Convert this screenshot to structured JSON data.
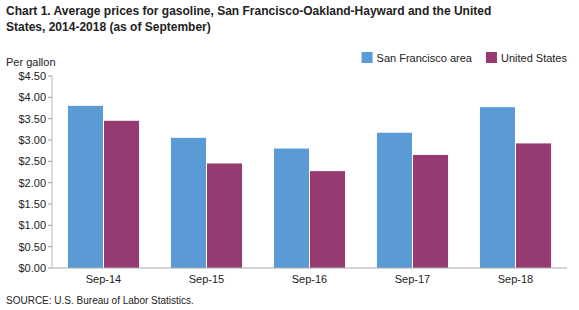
{
  "chart_data": {
    "type": "bar",
    "title": "Chart 1. Average prices for gasoline, San Francisco-Oakland-Hayward and the United",
    "subtitle": "States, 2014-2018  (as of September)",
    "y_label": "Per gallon",
    "annotations": [
      "SOURCE: U.S. Bureau of Labor Statistics."
    ],
    "categories": [
      "Sep-14",
      "Sep-15",
      "Sep-16",
      "Sep-17",
      "Sep-18"
    ],
    "series": [
      {
        "name": "San Francisco area",
        "color": "#5B9BD5",
        "values": [
          3.8,
          3.05,
          2.8,
          3.17,
          3.77
        ]
      },
      {
        "name": "United States",
        "color": "#963A72",
        "values": [
          3.45,
          2.45,
          2.27,
          2.65,
          2.92
        ]
      }
    ],
    "ylim": [
      0,
      4.5
    ],
    "yticks": [
      {
        "value": 0,
        "label": "$0.00"
      },
      {
        "value": 0.5,
        "label": "$0.50"
      },
      {
        "value": 1,
        "label": "$1.00"
      },
      {
        "value": 1.5,
        "label": "$1.50"
      },
      {
        "value": 2,
        "label": "$2.00"
      },
      {
        "value": 2.5,
        "label": "$2.50"
      },
      {
        "value": 3,
        "label": "$3.00"
      },
      {
        "value": 3.5,
        "label": "$3.50"
      },
      {
        "value": 4,
        "label": "$4.00"
      },
      {
        "value": 4.5,
        "label": "$4.50"
      }
    ],
    "grid": false,
    "legend": "upper right"
  }
}
